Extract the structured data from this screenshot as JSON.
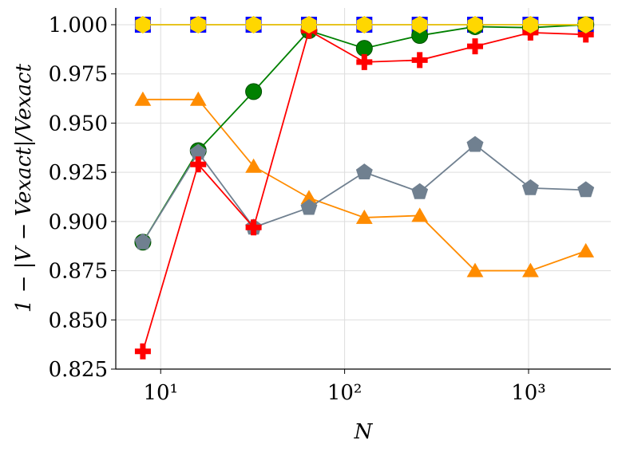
{
  "chart_data": {
    "type": "line",
    "xlabel": "N",
    "ylabel": "1 − |V − Vexact|/Vexact",
    "xscale": "log",
    "grid": true,
    "xlim": [
      5.7,
      2800
    ],
    "ylim": [
      0.825,
      1.0085
    ],
    "xticks": [
      {
        "value": 10,
        "label": "10¹"
      },
      {
        "value": 100,
        "label": "10²"
      },
      {
        "value": 1000,
        "label": "10³"
      }
    ],
    "yticks": [
      0.825,
      {
        "value": 0.85,
        "label": "0.850"
      },
      0.875,
      {
        "value": 0.9,
        "label": "0.900"
      },
      0.925,
      {
        "value": 0.95,
        "label": "0.950"
      },
      0.975,
      {
        "value": 1,
        "label": "1.000"
      }
    ],
    "x": [
      8,
      16,
      32,
      64,
      128,
      256,
      512,
      1024,
      2048
    ],
    "series": [
      {
        "color": "#0000ff",
        "marker": "square",
        "values": [
          1,
          1,
          1,
          1,
          1,
          1,
          1,
          1,
          1
        ]
      },
      {
        "color": "#ff8c00",
        "marker": "triangle",
        "values": [
          0.962,
          0.962,
          0.928,
          0.912,
          0.902,
          0.903,
          0.875,
          0.875,
          0.885
        ]
      },
      {
        "color": "#008000",
        "marker": "circle",
        "values": [
          0.8895,
          0.936,
          0.966,
          0.997,
          0.988,
          0.9945,
          0.999,
          0.9985,
          1
        ]
      },
      {
        "color": "#708090",
        "marker": "pentagon",
        "values": [
          0.8895,
          0.935,
          0.897,
          0.907,
          0.925,
          0.915,
          0.939,
          0.917,
          0.916
        ]
      },
      {
        "color": "#ff0000",
        "marker": "plus",
        "values": [
          0.834,
          0.929,
          0.897,
          0.997,
          0.981,
          0.982,
          0.989,
          0.996,
          0.995
        ]
      },
      {
        "color": "#ffd700",
        "marker": "hexagon",
        "values": [
          1,
          1,
          1,
          1,
          1,
          1,
          1,
          1,
          1
        ]
      }
    ]
  }
}
